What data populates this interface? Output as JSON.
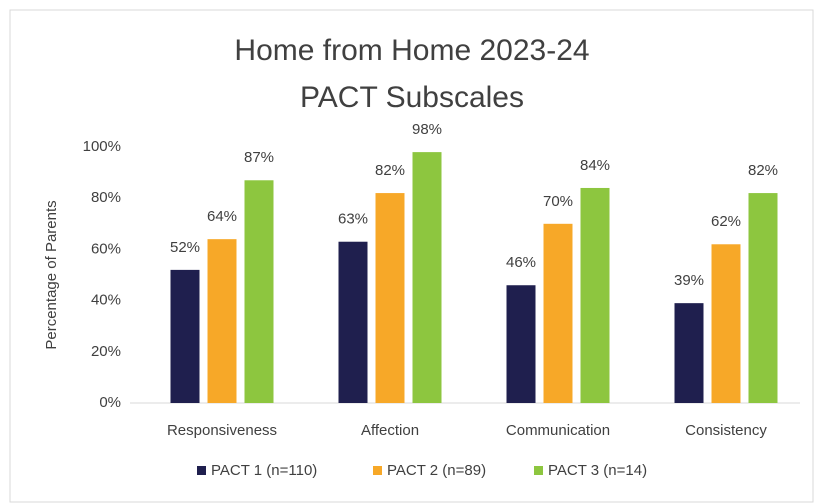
{
  "chart_data": {
    "type": "bar",
    "title": "Home from Home 2023-24",
    "subtitle": "PACT Subscales",
    "y_label": "Percentage of Parents",
    "categories": [
      "Responsiveness",
      "Affection",
      "Communication",
      "Consistency"
    ],
    "series": [
      {
        "name": "PACT 1 (n=110)",
        "color": "#1f1f4e",
        "values": [
          52,
          63,
          46,
          39
        ],
        "value_labels": [
          "52%",
          "63%",
          "46%",
          "39%"
        ]
      },
      {
        "name": "PACT 2 (n=89)",
        "color": "#f7a828",
        "values": [
          64,
          82,
          70,
          62
        ],
        "value_labels": [
          "64%",
          "82%",
          "70%",
          "62%"
        ]
      },
      {
        "name": "PACT 3 (n=14)",
        "color": "#8dc63f",
        "values": [
          87,
          98,
          84,
          82
        ],
        "value_labels": [
          "87%",
          "98%",
          "84%",
          "82%"
        ]
      }
    ],
    "ylim": [
      0,
      100
    ],
    "yticks": [
      {
        "value": 0,
        "label": "0%"
      },
      {
        "value": 20,
        "label": "20%"
      },
      {
        "value": 40,
        "label": "40%"
      },
      {
        "value": 60,
        "label": "60%"
      },
      {
        "value": 80,
        "label": "80%"
      },
      {
        "value": 100,
        "label": "100%"
      }
    ],
    "grid": false,
    "legend": "bottom"
  }
}
